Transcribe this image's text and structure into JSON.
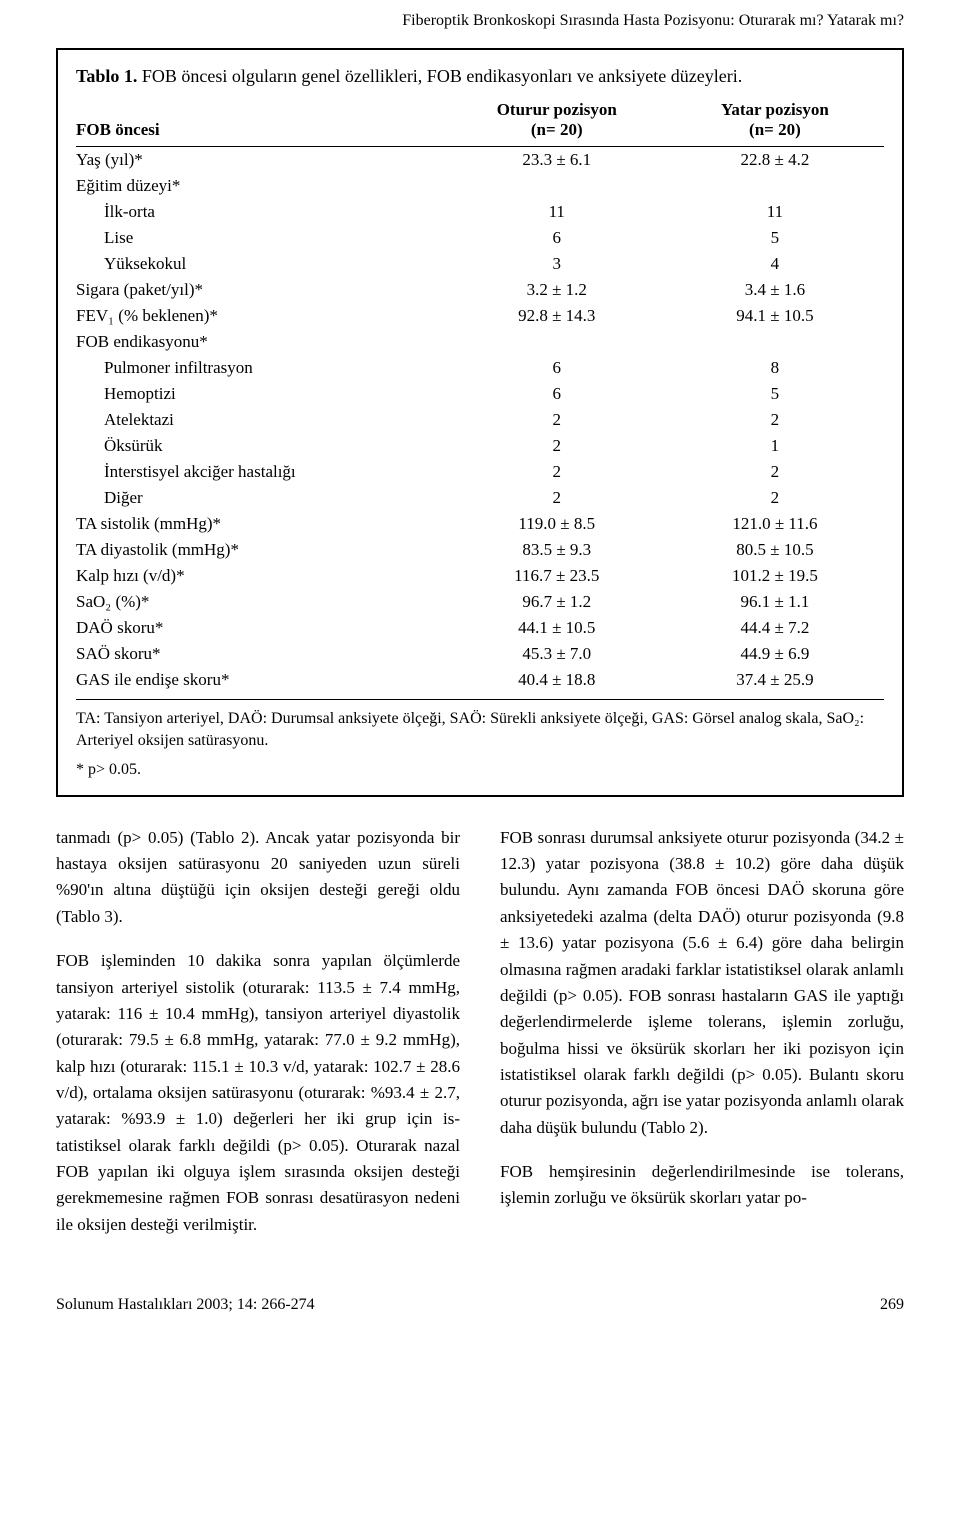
{
  "running_head": "Fiberoptik Bronkoskopi Sırasında Hasta Pozisyonu: Oturarak mı? Yatarak mı?",
  "table1": {
    "type": "table",
    "caption_label": "Tablo 1.",
    "caption_text": "FOB öncesi olguların genel özellikleri, FOB endikasyonları ve anksiyete düzeyleri.",
    "header": {
      "col0": "FOB öncesi",
      "col1_line1": "Oturur pozisyon",
      "col1_line2": "(n= 20)",
      "col2_line1": "Yatar pozisyon",
      "col2_line2": "(n= 20)"
    },
    "rows": [
      {
        "label": "Yaş (yıl)*",
        "c1": "23.3 ± 6.1",
        "c2": "22.8 ± 4.2",
        "indent": false
      },
      {
        "label": "Eğitim düzeyi*",
        "c1": "",
        "c2": "",
        "indent": false,
        "span": true
      },
      {
        "label": "İlk-orta",
        "c1": "11",
        "c2": "11",
        "indent": true
      },
      {
        "label": "Lise",
        "c1": "6",
        "c2": "5",
        "indent": true
      },
      {
        "label": "Yüksekokul",
        "c1": "3",
        "c2": "4",
        "indent": true
      },
      {
        "label": "Sigara (paket/yıl)*",
        "c1": "3.2 ± 1.2",
        "c2": "3.4 ± 1.6",
        "indent": false
      },
      {
        "label": "FEV₁ (% beklenen)*",
        "c1": "92.8 ± 14.3",
        "c2": "94.1 ± 10.5",
        "indent": false
      },
      {
        "label": "FOB endikasyonu*",
        "c1": "",
        "c2": "",
        "indent": false,
        "span": true
      },
      {
        "label": "Pulmoner infiltrasyon",
        "c1": "6",
        "c2": "8",
        "indent": true
      },
      {
        "label": "Hemoptizi",
        "c1": "6",
        "c2": "5",
        "indent": true
      },
      {
        "label": "Atelektazi",
        "c1": "2",
        "c2": "2",
        "indent": true
      },
      {
        "label": "Öksürük",
        "c1": "2",
        "c2": "1",
        "indent": true
      },
      {
        "label": "İnterstisyel akciğer hastalığı",
        "c1": "2",
        "c2": "2",
        "indent": true
      },
      {
        "label": "Diğer",
        "c1": "2",
        "c2": "2",
        "indent": true
      },
      {
        "label": "TA sistolik (mmHg)*",
        "c1": "119.0 ± 8.5",
        "c2": "121.0 ± 11.6",
        "indent": false
      },
      {
        "label": "TA diyastolik (mmHg)*",
        "c1": "83.5 ± 9.3",
        "c2": "80.5 ± 10.5",
        "indent": false
      },
      {
        "label": "Kalp hızı (v/d)*",
        "c1": "116.7 ± 23.5",
        "c2": "101.2 ± 19.5",
        "indent": false
      },
      {
        "label": "SaO₂ (%)*",
        "c1": "96.7 ± 1.2",
        "c2": "96.1 ± 1.1",
        "indent": false
      },
      {
        "label": "DAÖ skoru*",
        "c1": "44.1 ± 10.5",
        "c2": "44.4 ± 7.2",
        "indent": false
      },
      {
        "label": "SAÖ skoru*",
        "c1": "45.3 ± 7.0",
        "c2": "44.9 ± 6.9",
        "indent": false
      },
      {
        "label": "GAS ile endişe skoru*",
        "c1": "40.4 ± 18.8",
        "c2": "37.4 ± 25.9",
        "indent": false
      }
    ],
    "footnote1": "TA: Tansiyon arteriyel, DAÖ: Durumsal anksiyete ölçeği, SAÖ: Sürekli anksiyete ölçeği, GAS: Görsel analog skala, SaO₂: Arteriyel oksijen satürasyonu.",
    "footnote2": "* p> 0.05.",
    "colors": {
      "border": "#000000",
      "text": "#000000",
      "background": "#ffffff"
    },
    "col_widths_pct": [
      46,
      27,
      27
    ],
    "font_size_pt": 12
  },
  "body": {
    "left": {
      "p1": "tanmadı (p> 0.05) (Tablo 2). Ancak yatar pozis­yonda bir hastaya oksijen satürasyonu 20 saniye­den uzun süreli %90'ın altına düştüğü için oksijen desteği gereği oldu (Tablo 3).",
      "p2": "FOB işleminden 10 dakika sonra yapılan ölçümler­de tansiyon arteriyel sistolik (oturarak: 113.5 ± 7.4 mmHg, yatarak: 116 ± 10.4 mmHg), tansiyon ar­teriyel diyastolik (oturarak: 79.5 ± 6.8 mmHg, ya­tarak: 77.0 ± 9.2 mmHg), kalp hızı (oturarak: 115.1 ± 10.3 v/d, yatarak: 102.7 ± 28.6 v/d), orta­lama oksijen satürasyonu (oturarak: %93.4 ± 2.7, yatarak: %93.9 ± 1.0) değerleri her iki grup için is­tatistiksel olarak farklı değildi (p> 0.05). Oturarak nazal FOB yapılan iki olguya işlem sırasında oksijen desteği gerekmemesine rağmen FOB sonrası desa­türasyon nedeni ile oksijen desteği verilmiştir."
    },
    "right": {
      "p1": "FOB sonrası durumsal anksiyete oturur pozisyonda (34.2 ± 12.3) yatar pozisyona (38.8 ± 10.2) göre daha düşük bulundu. Aynı zamanda FOB öncesi DAÖ skoruna göre anksiyetedeki azalma (delta DAÖ) oturur pozisyonda (9.8 ± 13.6) yatar pozis­yona (5.6 ± 6.4) göre daha belirgin olmasına rağ­men aradaki farklar istatistiksel olarak anlamlı de­ğildi (p> 0.05). FOB sonrası hastaların GAS ile yap­tığı değerlendirmelerde işleme tolerans, işlemin zorluğu, boğulma hissi ve öksürük skorları her iki pozisyon için istatistiksel olarak farklı değildi (p> 0.05). Bulantı skoru oturur pozisyonda, ağrı ise ya­tar pozisyonda anlamlı olarak daha düşük bulundu (Tablo 2).",
      "p2": "FOB hemşiresinin değerlendirilmesinde ise tole­rans, işlemin zorluğu ve öksürük skorları yatar po-"
    }
  },
  "footer": {
    "journal": "Solunum Hastalıkları 2003; 14: 266-274",
    "page": "269"
  }
}
